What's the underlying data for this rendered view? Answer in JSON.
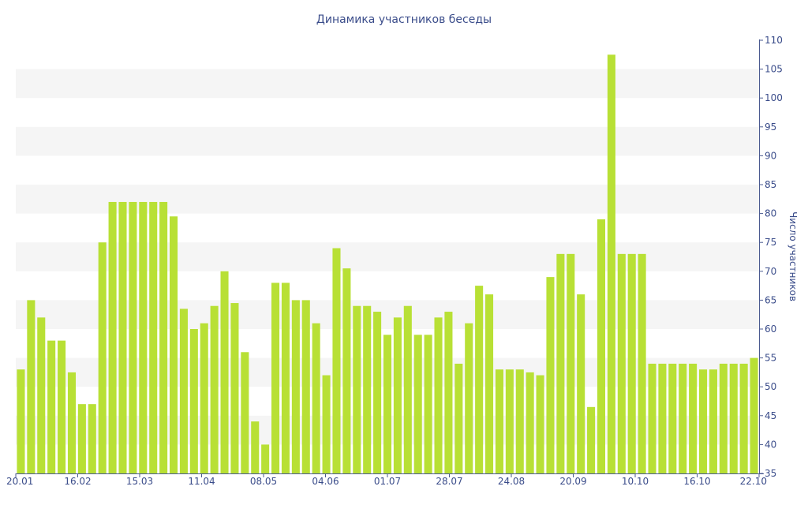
{
  "chart_data": {
    "type": "bar",
    "title": "Динамика участников беседы",
    "ylabel": "Число участников",
    "xlabel": "",
    "ylim": [
      35,
      110
    ],
    "y_ticks": [
      35,
      40,
      45,
      50,
      55,
      60,
      65,
      70,
      75,
      80,
      85,
      90,
      95,
      100,
      105,
      110
    ],
    "y_axis_side": "right",
    "grid": "horizontal alternating bands",
    "legend": "none",
    "x_tick_labels": [
      "20.01",
      "16.02",
      "15.03",
      "11.04",
      "08.05",
      "04.06",
      "01.07",
      "28.07",
      "24.08",
      "20.09",
      "10.10",
      "16.10",
      "22.10"
    ],
    "values": [
      53,
      65,
      62,
      58,
      58,
      52.5,
      47,
      47,
      75,
      82,
      82,
      82,
      82,
      82,
      82,
      79.5,
      63.5,
      60,
      61,
      64,
      70,
      64.5,
      56,
      44,
      40,
      68,
      68,
      65,
      65,
      61,
      52,
      74,
      70.5,
      64,
      64,
      63,
      59,
      62,
      64,
      59,
      59,
      62,
      63,
      54,
      61,
      67.5,
      66,
      53,
      53,
      53,
      52.5,
      52,
      69,
      73,
      73,
      66,
      46.5,
      79,
      107.5,
      73,
      73,
      73,
      54,
      54,
      54,
      54,
      54,
      53,
      53,
      54,
      54,
      54,
      55
    ],
    "colors": {
      "bar": "#b8e035",
      "band": "#f5f5f5",
      "text": "#3a4c8a",
      "axis": "#4a5a90"
    }
  }
}
